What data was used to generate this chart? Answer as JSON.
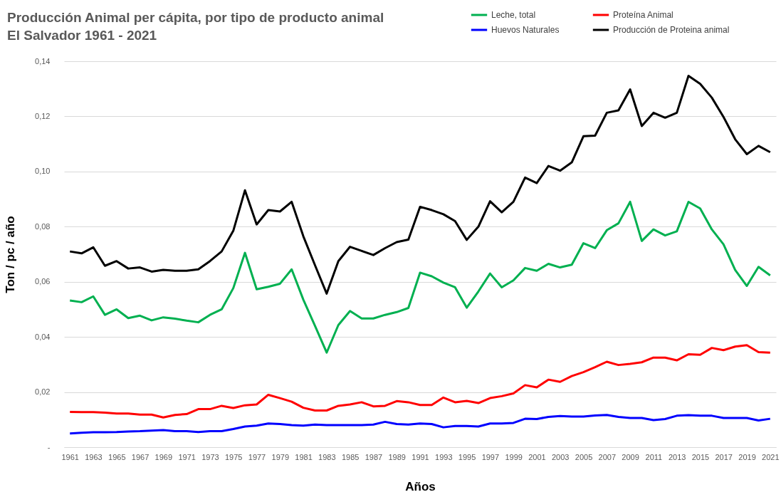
{
  "chart_data": {
    "type": "line",
    "title": "Producción Animal per cápita, por tipo de producto animal",
    "subtitle": "El Salvador 1961 - 2021",
    "xlabel": "Años",
    "ylabel": "Ton / pc / año",
    "x": [
      1961,
      1962,
      1963,
      1964,
      1965,
      1966,
      1967,
      1968,
      1969,
      1970,
      1971,
      1972,
      1973,
      1974,
      1975,
      1976,
      1977,
      1978,
      1979,
      1980,
      1981,
      1982,
      1983,
      1984,
      1985,
      1986,
      1987,
      1988,
      1989,
      1990,
      1991,
      1992,
      1993,
      1994,
      1995,
      1996,
      1997,
      1998,
      1999,
      2000,
      2001,
      2002,
      2003,
      2004,
      2005,
      2006,
      2007,
      2008,
      2009,
      2010,
      2011,
      2012,
      2013,
      2014,
      2015,
      2016,
      2017,
      2018,
      2019,
      2020,
      2021
    ],
    "xlim": [
      1960.5,
      2021.5
    ],
    "xticks": [
      1961,
      1963,
      1965,
      1967,
      1969,
      1971,
      1973,
      1975,
      1977,
      1979,
      1981,
      1983,
      1985,
      1987,
      1989,
      1991,
      1993,
      1995,
      1997,
      1999,
      2001,
      2003,
      2005,
      2007,
      2009,
      2011,
      2013,
      2015,
      2017,
      2019,
      2021
    ],
    "ylim": [
      0,
      0.14
    ],
    "yticks": [
      {
        "value": 0,
        "label": "-"
      },
      {
        "value": 0.02,
        "label": "0,02"
      },
      {
        "value": 0.04,
        "label": "0,04"
      },
      {
        "value": 0.06,
        "label": "0,06"
      },
      {
        "value": 0.08,
        "label": "0,08"
      },
      {
        "value": 0.1,
        "label": "0,10"
      },
      {
        "value": 0.12,
        "label": "0,12"
      },
      {
        "value": 0.14,
        "label": "0,14"
      }
    ],
    "grid": "y",
    "legend": "top right",
    "marker": "none",
    "line_style": "solid",
    "series": [
      {
        "name": "Leche, total",
        "color": "#00b050",
        "values": [
          0.0532,
          0.0526,
          0.0547,
          0.048,
          0.05,
          0.0468,
          0.0477,
          0.046,
          0.0471,
          0.0466,
          0.0459,
          0.0453,
          0.048,
          0.05,
          0.0577,
          0.0705,
          0.0573,
          0.0582,
          0.0593,
          0.0645,
          0.0535,
          0.044,
          0.0343,
          0.0443,
          0.0494,
          0.0467,
          0.0467,
          0.048,
          0.049,
          0.0505,
          0.0633,
          0.062,
          0.0597,
          0.058,
          0.0506,
          0.0565,
          0.063,
          0.058,
          0.0605,
          0.065,
          0.064,
          0.0665,
          0.0652,
          0.0662,
          0.074,
          0.0722,
          0.0787,
          0.0812,
          0.089,
          0.0748,
          0.079,
          0.0768,
          0.0783,
          0.089,
          0.0866,
          0.079,
          0.0736,
          0.0643,
          0.0585,
          0.0654,
          0.0623
        ]
      },
      {
        "name": "Proteína Animal",
        "color": "#ff0000",
        "values": [
          0.0128,
          0.0127,
          0.0127,
          0.0125,
          0.0122,
          0.0122,
          0.0118,
          0.0118,
          0.0108,
          0.0117,
          0.012,
          0.0138,
          0.0138,
          0.015,
          0.0142,
          0.0152,
          0.0155,
          0.019,
          0.0178,
          0.0165,
          0.0143,
          0.0133,
          0.0133,
          0.015,
          0.0155,
          0.0163,
          0.0148,
          0.015,
          0.0167,
          0.0163,
          0.0153,
          0.0153,
          0.018,
          0.0163,
          0.0168,
          0.016,
          0.0178,
          0.0185,
          0.0195,
          0.0225,
          0.0217,
          0.0245,
          0.0237,
          0.0258,
          0.0272,
          0.029,
          0.031,
          0.0298,
          0.0302,
          0.0308,
          0.0325,
          0.0325,
          0.0315,
          0.0337,
          0.0335,
          0.036,
          0.0352,
          0.0365,
          0.037,
          0.0345,
          0.0343
        ]
      },
      {
        "name": "Huevos Naturales",
        "color": "#0000ff",
        "values": [
          0.005,
          0.0052,
          0.0054,
          0.0054,
          0.0055,
          0.0057,
          0.0058,
          0.006,
          0.0062,
          0.0058,
          0.0058,
          0.0055,
          0.0058,
          0.0058,
          0.0066,
          0.0075,
          0.0078,
          0.0086,
          0.0084,
          0.008,
          0.0078,
          0.0082,
          0.008,
          0.008,
          0.008,
          0.008,
          0.0082,
          0.0092,
          0.0084,
          0.0082,
          0.0086,
          0.0084,
          0.0072,
          0.0077,
          0.0077,
          0.0075,
          0.0086,
          0.0086,
          0.0088,
          0.0103,
          0.0102,
          0.011,
          0.0113,
          0.0111,
          0.0111,
          0.0115,
          0.0117,
          0.011,
          0.0106,
          0.0106,
          0.0098,
          0.0102,
          0.0114,
          0.0116,
          0.0114,
          0.0114,
          0.0106,
          0.0106,
          0.0106,
          0.0097,
          0.0103
        ]
      },
      {
        "name": "Producción de Proteina animal",
        "color": "#000000",
        "values": [
          0.071,
          0.0703,
          0.0725,
          0.0658,
          0.0675,
          0.0648,
          0.0652,
          0.0637,
          0.0643,
          0.064,
          0.064,
          0.0645,
          0.0675,
          0.071,
          0.0785,
          0.0932,
          0.0808,
          0.086,
          0.0855,
          0.089,
          0.0765,
          0.066,
          0.0557,
          0.0675,
          0.0727,
          0.0712,
          0.0697,
          0.0722,
          0.0744,
          0.0753,
          0.0872,
          0.086,
          0.0845,
          0.082,
          0.0752,
          0.08,
          0.0892,
          0.0852,
          0.089,
          0.0978,
          0.0958,
          0.102,
          0.1003,
          0.1033,
          0.1128,
          0.113,
          0.1213,
          0.1222,
          0.1298,
          0.1165,
          0.1213,
          0.1195,
          0.1213,
          0.1347,
          0.1318,
          0.1268,
          0.1198,
          0.1117,
          0.1063,
          0.1093,
          0.107
        ]
      }
    ]
  }
}
